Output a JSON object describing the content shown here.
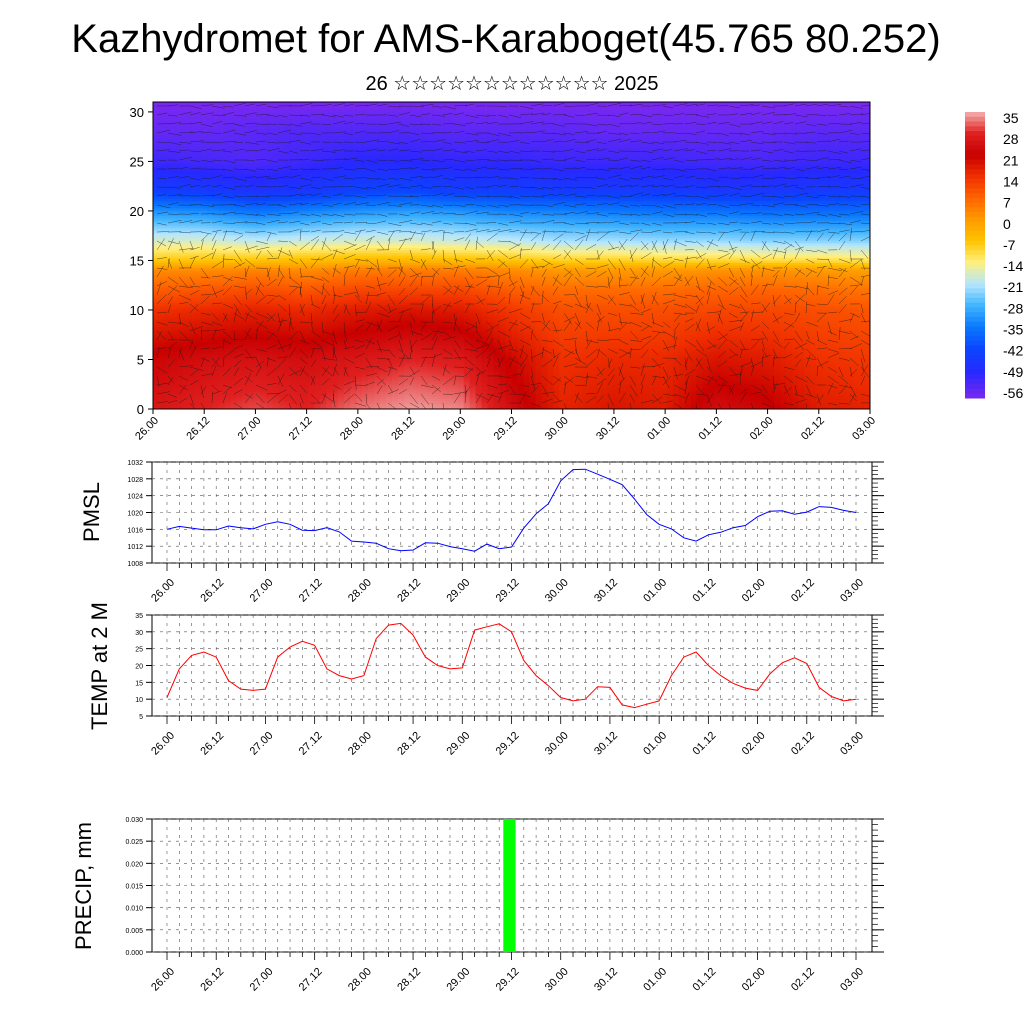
{
  "header": {
    "title": "Kazhydromet for AMS-Karaboget(45.765 80.252)",
    "subtitle": "26 ☆☆☆☆☆☆☆☆☆☆☆☆ 2025"
  },
  "time_labels": [
    "26.00",
    "26.12",
    "27.00",
    "27.12",
    "28.00",
    "28.12",
    "29.00",
    "29.12",
    "30.00",
    "30.12",
    "01.00",
    "01.12",
    "02.00",
    "02.12",
    "03.00"
  ],
  "colorbar": {
    "labels": [
      "35",
      "28",
      "21",
      "14",
      "7",
      "0",
      "-7",
      "-14",
      "-21",
      "-28",
      "-35",
      "-42",
      "-49",
      "-56"
    ],
    "colors": [
      "#f4b0b0",
      "#e02020",
      "#c80000",
      "#f03000",
      "#ff6400",
      "#ff9a00",
      "#ffc400",
      "#fff080",
      "#b4e6ff",
      "#40b4ff",
      "#0a78ff",
      "#0a46ff",
      "#2828ff",
      "#7a28f0"
    ]
  },
  "chart_data": [
    {
      "type": "heatmap",
      "id": "temperature-profile",
      "x": [
        "26.00",
        "26.12",
        "27.00",
        "27.12",
        "28.00",
        "28.12",
        "29.00",
        "29.12",
        "30.00",
        "30.12",
        "01.00",
        "01.12",
        "02.00",
        "02.12",
        "03.00"
      ],
      "ylim": [
        0,
        31
      ],
      "yticks": [
        0,
        5,
        10,
        15,
        20,
        25,
        30
      ],
      "levels": [
        0,
        5,
        10,
        12,
        14,
        15,
        17,
        20,
        22,
        25,
        28,
        31
      ],
      "values_by_level": [
        [
          26,
          28,
          30,
          28,
          32,
          34,
          33,
          24,
          16,
          18,
          17,
          24,
          22,
          17,
          16
        ],
        [
          22,
          24,
          25,
          24,
          26,
          28,
          27,
          20,
          14,
          15,
          15,
          18,
          17,
          14,
          13
        ],
        [
          14,
          15,
          16,
          15,
          17,
          18,
          17,
          13,
          10,
          10,
          10,
          11,
          11,
          10,
          9
        ],
        [
          8,
          9,
          10,
          9,
          11,
          11,
          11,
          8,
          6,
          6,
          6,
          7,
          7,
          6,
          5
        ],
        [
          2,
          2,
          3,
          2,
          4,
          4,
          4,
          2,
          0,
          0,
          0,
          1,
          1,
          0,
          -1
        ],
        [
          -8,
          -7,
          -7,
          -6,
          -5,
          -5,
          -6,
          -7,
          -9,
          -9,
          -10,
          -10,
          -11,
          -11,
          -12
        ],
        [
          -18,
          -18,
          -20,
          -19,
          -18,
          -18,
          -19,
          -20,
          -22,
          -22,
          -23,
          -23,
          -24,
          -24,
          -24
        ],
        [
          -32,
          -33,
          -36,
          -34,
          -32,
          -31,
          -32,
          -34,
          -34,
          -35,
          -36,
          -36,
          -37,
          -37,
          -37
        ],
        [
          -44,
          -45,
          -47,
          -46,
          -43,
          -42,
          -44,
          -44,
          -45,
          -45,
          -45,
          -46,
          -46,
          -45,
          -45
        ],
        [
          -52,
          -53,
          -54,
          -52,
          -50,
          -50,
          -51,
          -51,
          -52,
          -52,
          -52,
          -53,
          -53,
          -52,
          -52
        ],
        [
          -56,
          -56,
          -55,
          -54,
          -54,
          -54,
          -55,
          -55,
          -55,
          -56,
          -56,
          -56,
          -56,
          -55,
          -55
        ],
        [
          -58,
          -58,
          -58,
          -58,
          -58,
          -58,
          -58,
          -58,
          -58,
          -58,
          -58,
          -58,
          -58,
          -58,
          -58
        ]
      ]
    },
    {
      "type": "line",
      "id": "pmsl",
      "ylabel": "PMSL",
      "ylim": [
        1008,
        1032
      ],
      "yticks": [
        1008,
        1012,
        1016,
        1020,
        1024,
        1028,
        1032
      ],
      "color": "#0000ff",
      "x": [
        0,
        3,
        6,
        9,
        12,
        15,
        18,
        21,
        24,
        27,
        30,
        33,
        36,
        39,
        42,
        45,
        48,
        51,
        54,
        57,
        60,
        63,
        66,
        69,
        72,
        75,
        78,
        81,
        84,
        87,
        90,
        93,
        96,
        99,
        102,
        105,
        108,
        111,
        114,
        117,
        120,
        123,
        126,
        129,
        132,
        135,
        138,
        141,
        144,
        147,
        150,
        153,
        156,
        159,
        162,
        165,
        168
      ],
      "values": [
        1016,
        1016.7,
        1016.3,
        1015.9,
        1015.9,
        1016.8,
        1016.4,
        1016.1,
        1017.2,
        1017.8,
        1017.2,
        1015.8,
        1015.7,
        1016.4,
        1015.4,
        1013.2,
        1013,
        1012.7,
        1011.4,
        1010.9,
        1011.1,
        1012.8,
        1012.7,
        1011.9,
        1011.4,
        1010.8,
        1012.5,
        1011.4,
        1011.8,
        1016.3,
        1019.7,
        1022.1,
        1027.5,
        1030.2,
        1030.3,
        1029.1,
        1027.9,
        1026.6,
        1023.2,
        1019.5,
        1017.2,
        1016.1,
        1014,
        1013.2,
        1014.7,
        1015.3,
        1016.4,
        1016.9,
        1019,
        1020.3,
        1020.4,
        1019.6,
        1020.1,
        1021.4,
        1021.2,
        1020.5,
        1020
      ]
    },
    {
      "type": "line",
      "id": "temp-2m",
      "ylabel": "TEMP at 2 M",
      "ylim": [
        5,
        35
      ],
      "yticks": [
        5,
        10,
        15,
        20,
        25,
        30,
        35
      ],
      "color": "#ff0000",
      "x": [
        0,
        3,
        6,
        9,
        12,
        15,
        18,
        21,
        24,
        27,
        30,
        33,
        36,
        39,
        42,
        45,
        48,
        51,
        54,
        57,
        60,
        63,
        66,
        69,
        72,
        75,
        78,
        81,
        84,
        87,
        90,
        93,
        96,
        99,
        102,
        105,
        108,
        111,
        114,
        117,
        120,
        123,
        126,
        129,
        132,
        135,
        138,
        141,
        144,
        147,
        150,
        153,
        156,
        159,
        162,
        165,
        168
      ],
      "values": [
        10.5,
        19,
        23,
        24,
        22.5,
        15.5,
        13,
        12.6,
        13,
        22.5,
        25.5,
        27.2,
        26,
        19,
        17,
        16,
        17,
        28,
        32,
        32.5,
        29,
        22.5,
        20,
        19,
        19.3,
        30.5,
        31.5,
        32.4,
        30,
        21.5,
        17,
        14,
        10.5,
        9.5,
        10,
        13.7,
        13.5,
        8.3,
        7.5,
        8.5,
        9.5,
        17,
        22.5,
        24,
        20,
        17,
        14.7,
        13.3,
        12.6,
        17.5,
        20.8,
        22.3,
        20.6,
        13.5,
        10.8,
        9.5,
        10
      ]
    },
    {
      "type": "bar",
      "id": "precip",
      "ylabel": "PRECIP, mm",
      "ylim": [
        0,
        0.03
      ],
      "yticks": [
        "0.000",
        "0.005",
        "0.010",
        "0.015",
        "0.020",
        "0.025",
        "0.030"
      ],
      "color": "#00ff00",
      "bars": [
        {
          "x_start": 82,
          "x_end": 85,
          "value": 0.03
        }
      ]
    }
  ]
}
